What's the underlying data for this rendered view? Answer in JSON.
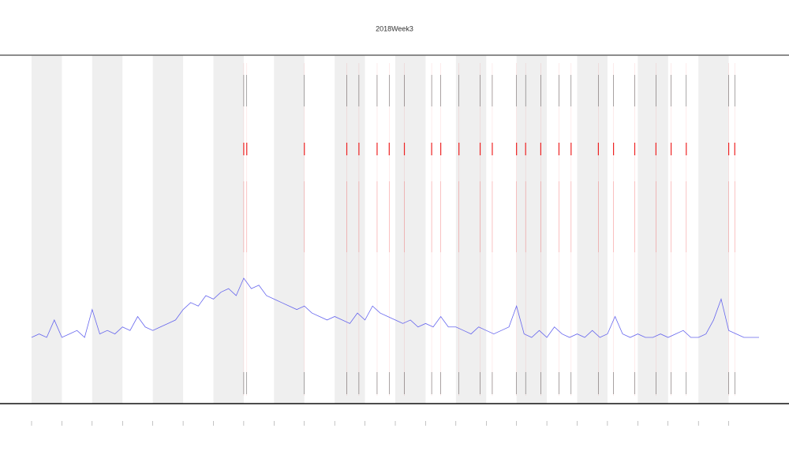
{
  "chart_data": {
    "type": "line",
    "title": "2018Week3",
    "x": [
      0,
      0.25,
      0.5,
      0.75,
      1,
      1.25,
      1.5,
      1.75,
      2,
      2.25,
      2.5,
      2.75,
      3,
      3.25,
      3.5,
      3.75,
      4,
      4.25,
      4.5,
      4.75,
      5,
      5.25,
      5.5,
      5.75,
      6,
      6.25,
      6.5,
      6.75,
      7,
      7.25,
      7.5,
      7.75,
      8,
      8.25,
      8.5,
      8.75,
      9,
      9.25,
      9.5,
      9.75,
      10,
      10.25,
      10.5,
      10.75,
      11,
      11.25,
      11.5,
      11.75,
      12,
      12.25,
      12.5,
      12.75,
      13,
      13.25,
      13.5,
      13.75,
      14,
      14.25,
      14.5,
      14.75,
      15,
      15.25,
      15.5,
      15.75,
      16,
      16.25,
      16.5,
      16.75,
      17,
      17.25,
      17.5,
      17.75,
      18,
      18.25,
      18.5,
      18.75,
      19,
      19.25,
      19.5,
      19.75,
      20,
      20.25,
      20.5,
      20.75,
      21,
      21.25,
      21.5,
      21.75,
      22,
      22.25,
      22.5,
      22.75,
      23,
      23.25,
      23.5,
      23.75,
      24
    ],
    "series": [
      {
        "color": "#6666ee",
        "values": [
          19,
          20,
          19,
          24,
          19,
          20,
          21,
          19,
          27,
          20,
          21,
          20,
          22,
          21,
          25,
          22,
          21,
          22,
          23,
          24,
          27,
          29,
          28,
          31,
          30,
          32,
          33,
          31,
          36,
          33,
          34,
          31,
          30,
          29,
          28,
          27,
          28,
          26,
          25,
          24,
          25,
          24,
          23,
          26,
          24,
          28,
          26,
          25,
          24,
          23,
          24,
          22,
          23,
          22,
          25,
          22,
          22,
          21,
          20,
          22,
          21,
          20,
          21,
          22,
          28,
          20,
          19,
          21,
          19,
          22,
          20,
          19,
          20,
          19,
          21,
          19,
          20,
          25,
          20,
          19,
          20,
          19,
          19,
          20,
          19,
          20,
          21,
          19,
          19,
          20,
          24,
          30,
          21,
          20,
          19,
          19,
          19
        ]
      }
    ],
    "events": [
      7.0,
      7.1,
      9.0,
      10.4,
      10.8,
      11.4,
      11.8,
      12.3,
      13.2,
      13.5,
      14.1,
      14.8,
      15.2,
      16.0,
      16.3,
      16.8,
      17.4,
      17.8,
      18.7,
      19.2,
      19.9,
      20.6,
      21.1,
      21.6,
      23.0,
      23.2
    ],
    "event_color": "#ee2222",
    "xlim": [
      0,
      24
    ],
    "xticks": [
      0,
      1,
      2,
      3,
      4,
      5,
      6,
      7,
      8,
      9,
      10,
      11,
      12,
      13,
      14,
      15,
      16,
      17,
      18,
      19,
      20,
      21,
      22,
      23
    ],
    "ylim": [
      0,
      100
    ]
  }
}
